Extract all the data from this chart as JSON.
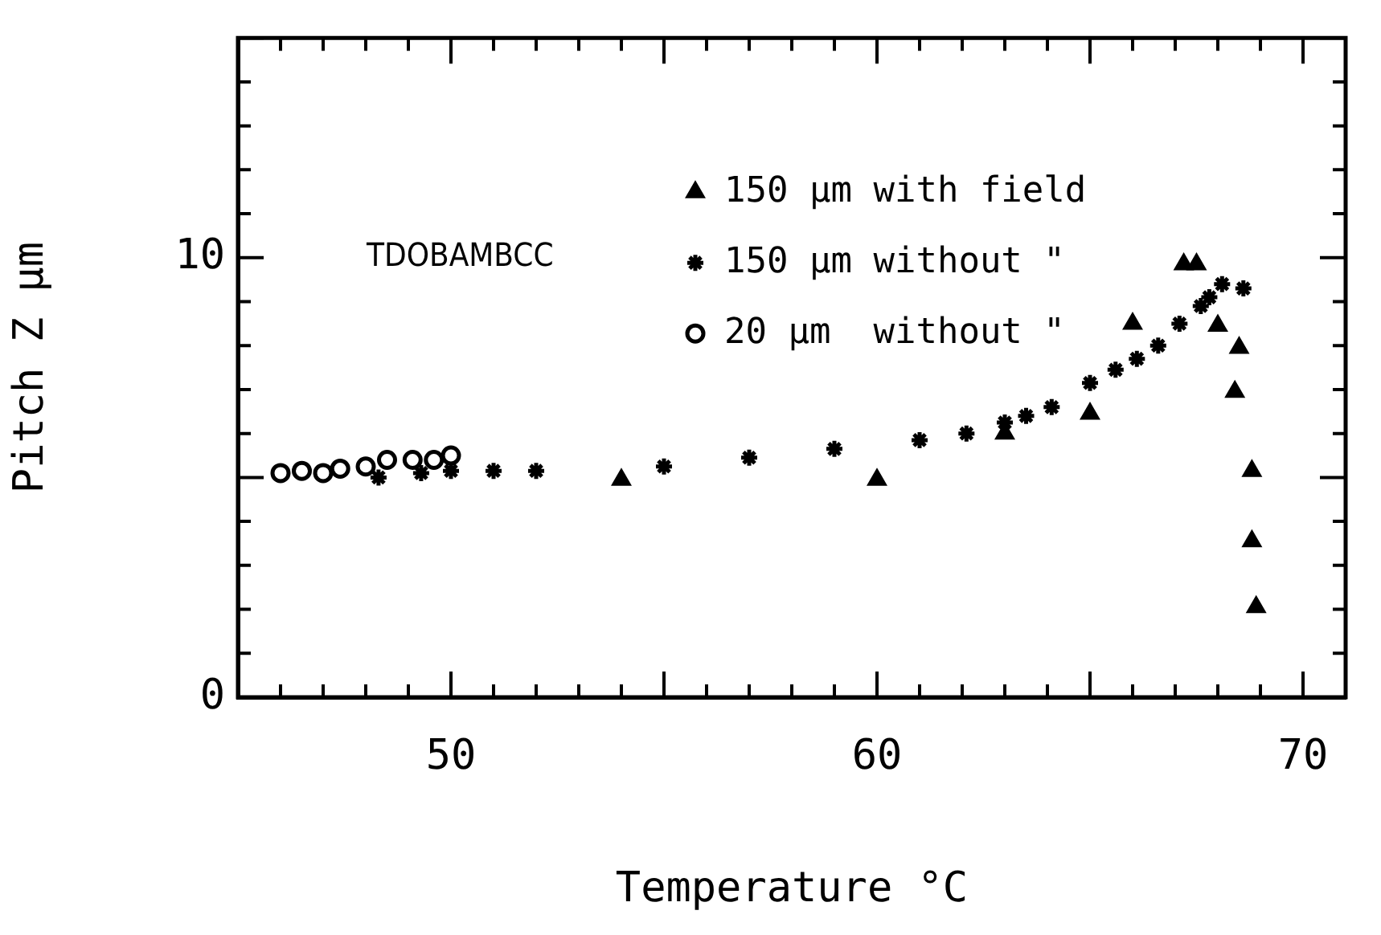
{
  "chart_data": {
    "type": "scatter",
    "xlabel": "Temperature °C",
    "ylabel": "Pitch Z μm",
    "annotations": [
      "TDOBAMBCC"
    ],
    "xlim": [
      45,
      71
    ],
    "xticks": [
      {
        "value": 45,
        "label": null
      },
      {
        "value": 46,
        "label": null
      },
      {
        "value": 47,
        "label": null
      },
      {
        "value": 48,
        "label": null
      },
      {
        "value": 49,
        "label": null
      },
      50,
      {
        "value": 51,
        "label": null
      },
      {
        "value": 52,
        "label": null
      },
      {
        "value": 53,
        "label": null
      },
      {
        "value": 54,
        "label": null
      },
      {
        "value": 55,
        "label": null
      },
      {
        "value": 56,
        "label": null
      },
      {
        "value": 57,
        "label": null
      },
      {
        "value": 58,
        "label": null
      },
      {
        "value": 59,
        "label": null
      },
      60,
      {
        "value": 61,
        "label": null
      },
      {
        "value": 62,
        "label": null
      },
      {
        "value": 63,
        "label": null
      },
      {
        "value": 64,
        "label": null
      },
      {
        "value": 65,
        "label": null
      },
      {
        "value": 66,
        "label": null
      },
      {
        "value": 67,
        "label": null
      },
      {
        "value": 68,
        "label": null
      },
      {
        "value": 69,
        "label": null
      },
      70,
      {
        "value": 71,
        "label": null
      }
    ],
    "ylim": [
      0,
      15
    ],
    "yticks": [
      0,
      {
        "value": 1,
        "label": null
      },
      {
        "value": 2,
        "label": null
      },
      {
        "value": 3,
        "label": null
      },
      {
        "value": 4,
        "label": null
      },
      {
        "value": 5,
        "label": null
      },
      {
        "value": 6,
        "label": null
      },
      {
        "value": 7,
        "label": null
      },
      {
        "value": 8,
        "label": null
      },
      {
        "value": 9,
        "label": null
      },
      10,
      {
        "value": 11,
        "label": null
      },
      {
        "value": 12,
        "label": null
      },
      {
        "value": 13,
        "label": null
      },
      {
        "value": 14,
        "label": null
      },
      {
        "value": 15,
        "label": null
      }
    ],
    "legend": "top",
    "series": [
      {
        "name": "150 μm with field",
        "color": "#000000",
        "marker": "triangle",
        "x": [
          54.0,
          60.0,
          63.0,
          65.0,
          66.0,
          67.2,
          67.5,
          68.0,
          68.4,
          68.5,
          68.8,
          68.8,
          68.9
        ],
        "values": [
          4.95,
          4.95,
          6.0,
          6.45,
          8.5,
          9.85,
          9.85,
          8.45,
          6.95,
          7.95,
          5.15,
          3.55,
          2.05
        ]
      },
      {
        "name": "150 μm without \"",
        "color": "#000000",
        "marker": "cross",
        "x": [
          48.3,
          49.3,
          50.0,
          51.0,
          52.0,
          55.0,
          57.0,
          59.0,
          61.0,
          62.1,
          63.0,
          63.5,
          64.1,
          65.0,
          65.6,
          66.1,
          66.6,
          67.1,
          67.6,
          67.8,
          68.1,
          68.6
        ],
        "values": [
          5.0,
          5.1,
          5.15,
          5.15,
          5.15,
          5.25,
          5.45,
          5.65,
          5.85,
          6.0,
          6.25,
          6.4,
          6.6,
          7.15,
          7.45,
          7.7,
          8.0,
          8.5,
          8.9,
          9.1,
          9.4,
          9.3
        ]
      },
      {
        "name": "20 μm  without \"",
        "color": "#000000",
        "marker": "circle",
        "x": [
          46.0,
          46.5,
          47.0,
          47.4,
          48.0,
          48.5,
          49.1,
          49.6,
          50.0
        ],
        "values": [
          5.1,
          5.15,
          5.1,
          5.2,
          5.25,
          5.4,
          5.4,
          5.4,
          5.5
        ]
      }
    ]
  }
}
